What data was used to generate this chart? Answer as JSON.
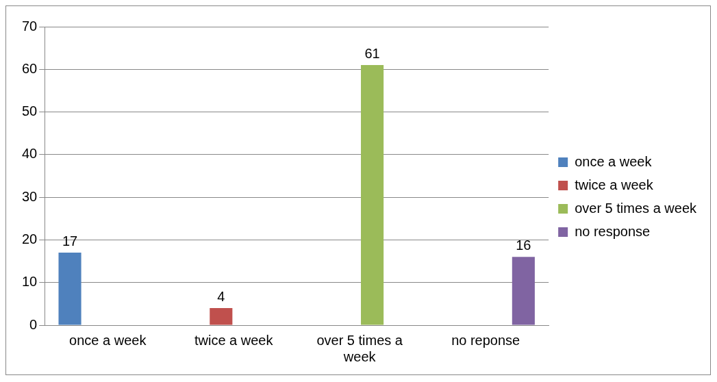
{
  "chart_data": {
    "type": "bar",
    "categories": [
      "once a week",
      "twice a week",
      "over 5 times a week",
      "no reponse"
    ],
    "series": [
      {
        "name": "once a week",
        "color": "#4f81bd",
        "values": [
          17,
          null,
          null,
          null
        ]
      },
      {
        "name": "twice a week",
        "color": "#c0504d",
        "values": [
          null,
          4,
          null,
          null
        ]
      },
      {
        "name": "over 5 times a week",
        "color": "#9bbb59",
        "values": [
          null,
          null,
          61,
          null
        ]
      },
      {
        "name": "no response",
        "color": "#8064a2",
        "values": [
          null,
          null,
          null,
          16
        ]
      }
    ],
    "ylim": [
      0,
      70
    ],
    "yticks": [
      0,
      10,
      20,
      30,
      40,
      50,
      60,
      70
    ],
    "grid": "y",
    "legend": "right",
    "data_labels": true
  }
}
